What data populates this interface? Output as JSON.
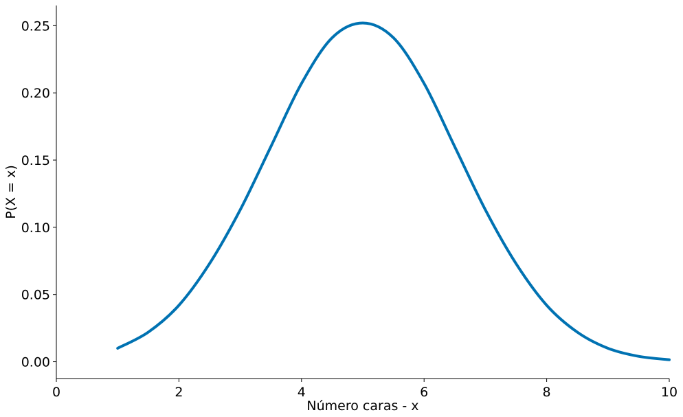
{
  "chart_data": {
    "type": "line",
    "title": "",
    "xlabel": "Número caras - x",
    "ylabel": "P(X = x)",
    "xlim": [
      0,
      10
    ],
    "ylim": [
      -0.0125,
      0.265
    ],
    "x_ticks": [
      0,
      2,
      4,
      6,
      8,
      10
    ],
    "x_tick_labels": [
      "0",
      "2",
      "4",
      "6",
      "8",
      "10"
    ],
    "y_ticks": [
      0.0,
      0.05,
      0.1,
      0.15,
      0.2,
      0.25
    ],
    "y_tick_labels": [
      "0.00",
      "0.05",
      "0.10",
      "0.15",
      "0.20",
      "0.25"
    ],
    "grid": false,
    "series": [
      {
        "color": "#0072b2",
        "x": [
          1,
          1.5,
          2,
          2.5,
          3,
          3.5,
          4,
          4.5,
          5,
          5.5,
          6,
          6.5,
          7,
          7.5,
          8,
          8.5,
          9,
          9.5,
          10
        ],
        "y": [
          0.01,
          0.022,
          0.042,
          0.073,
          0.113,
          0.16,
          0.207,
          0.241,
          0.252,
          0.241,
          0.207,
          0.16,
          0.113,
          0.073,
          0.042,
          0.022,
          0.01,
          0.004,
          0.0015
        ]
      }
    ]
  }
}
